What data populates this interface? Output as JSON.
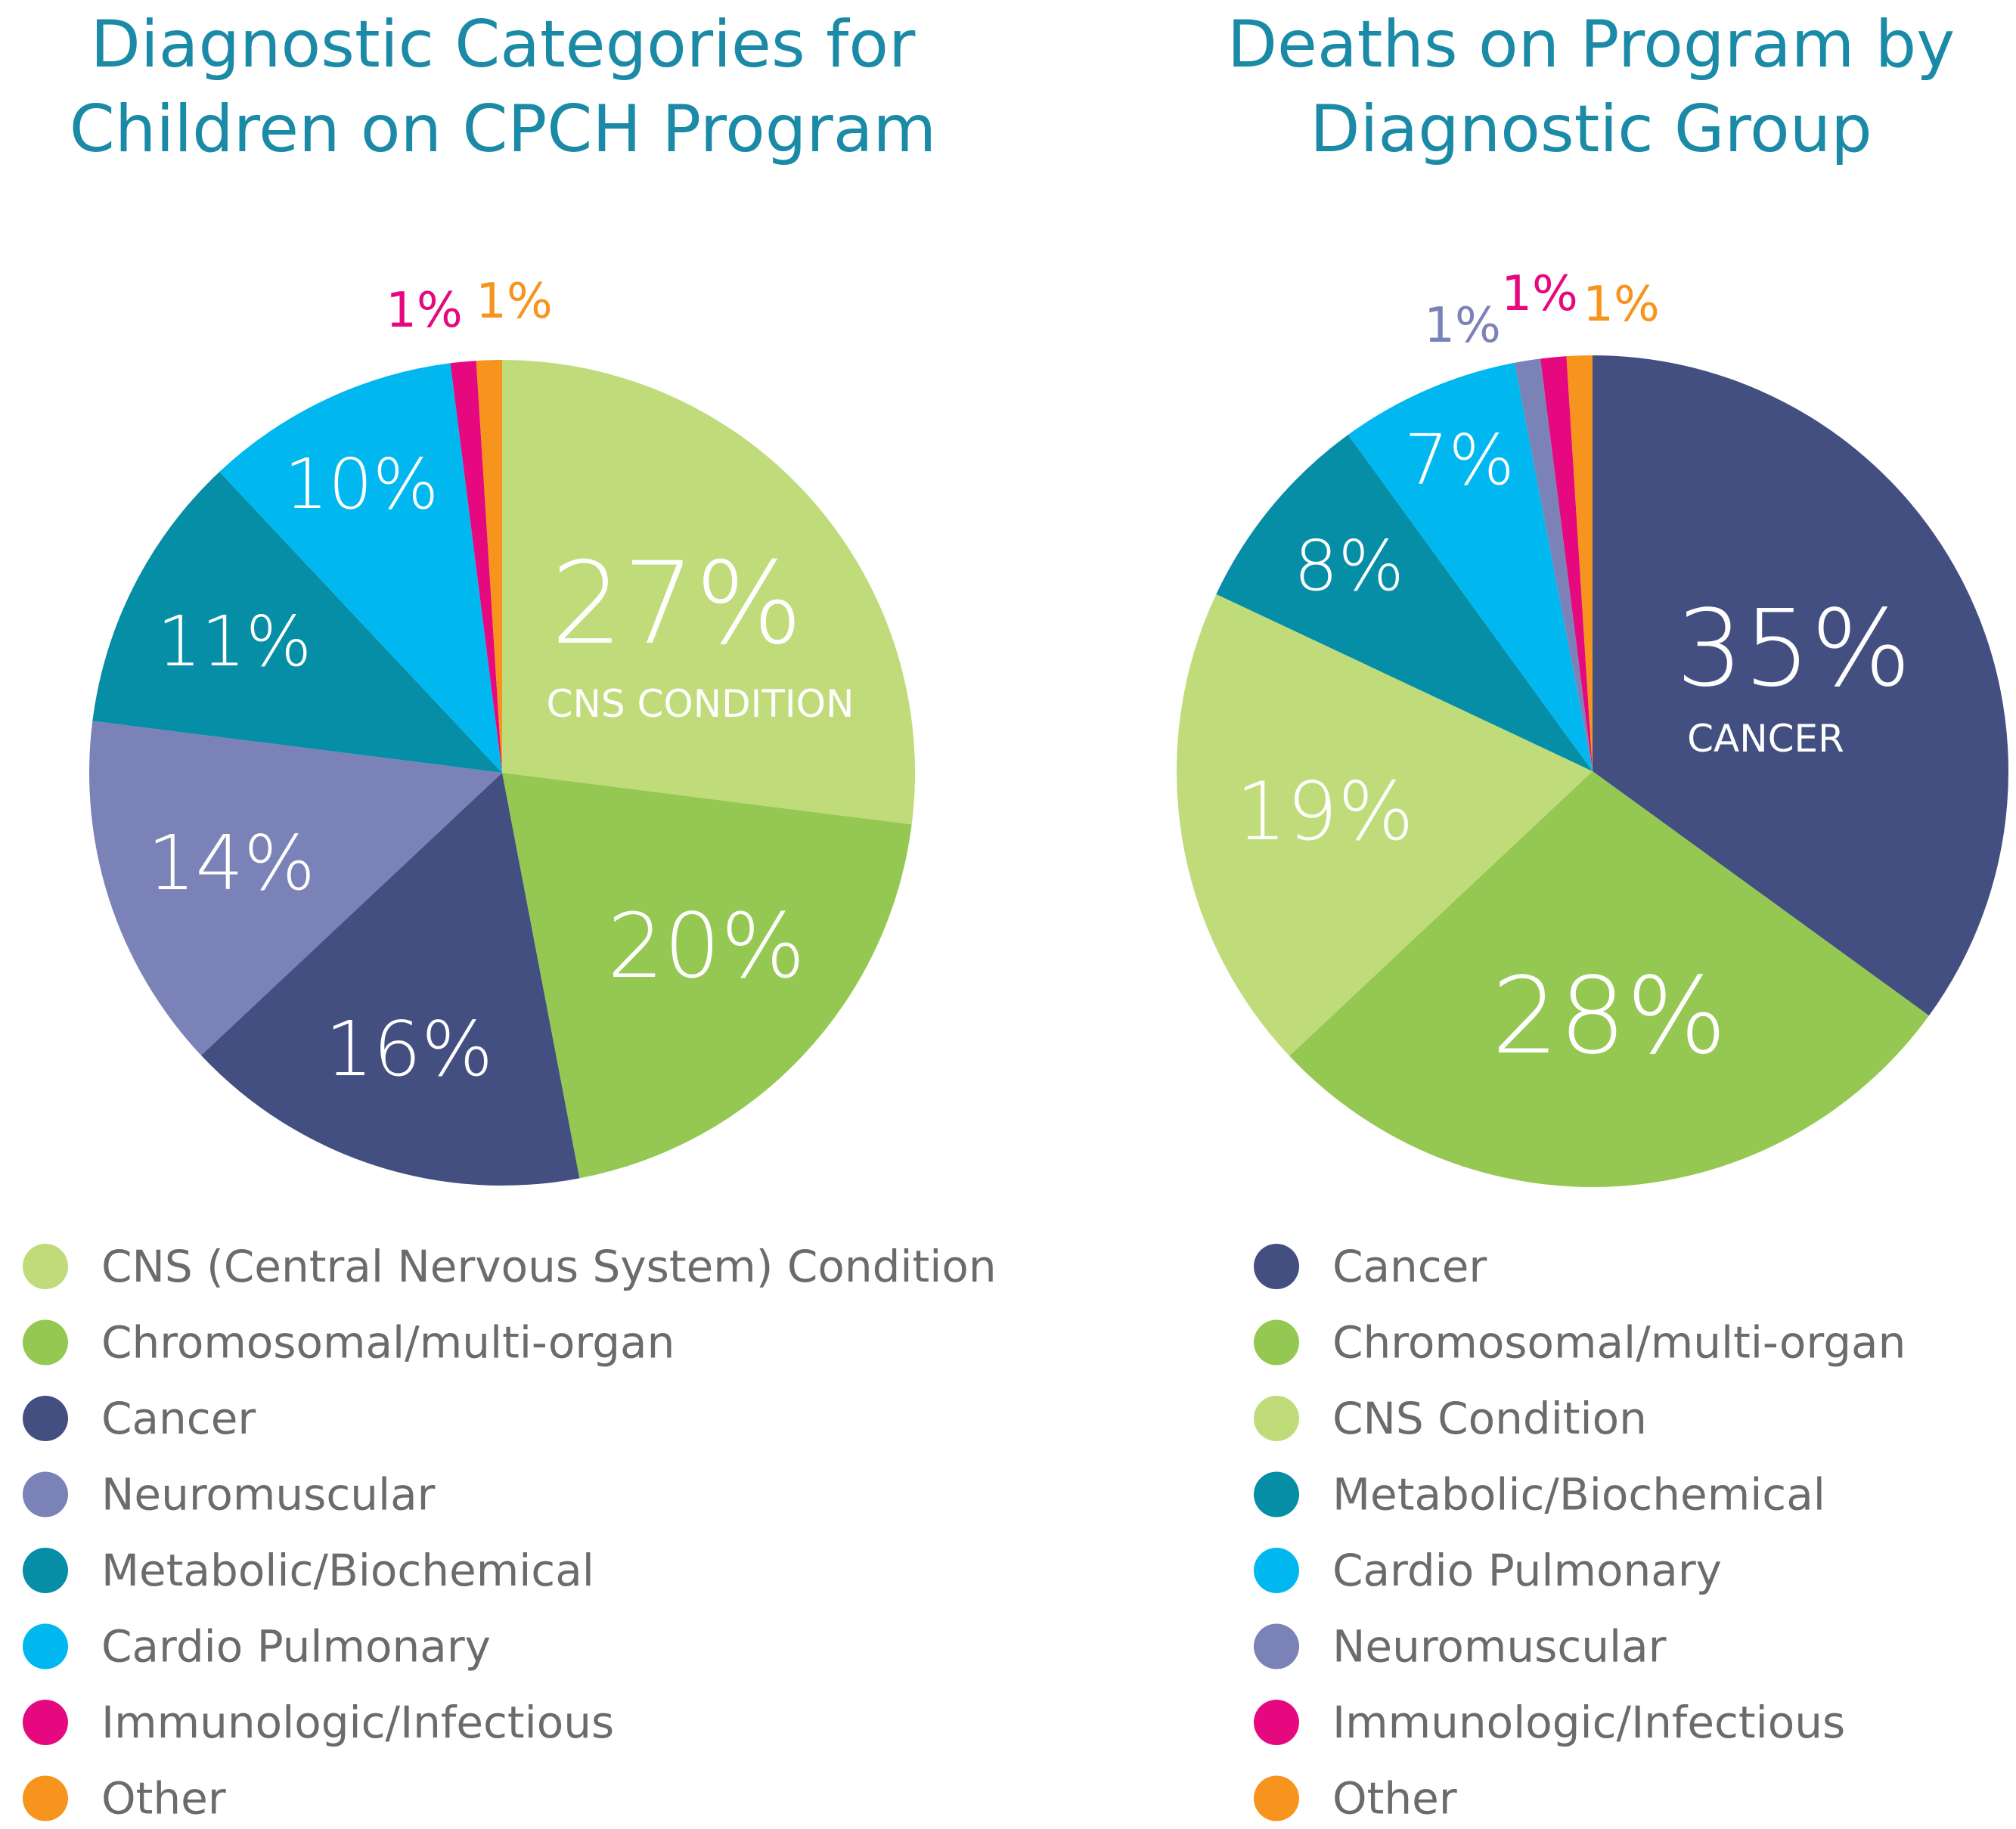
{
  "chart_data": [
    {
      "type": "pie",
      "title_lines": [
        "Diagnostic Categories for",
        "Children on CPCH Program"
      ],
      "slices": [
        {
          "label": "CNS (Central Nervous System) Condition",
          "value": 27,
          "value_text": "27%",
          "inner_label": "CNS CONDITION",
          "color": "#bfdb7a"
        },
        {
          "label": "Chromosomal/multi-organ",
          "value": 20,
          "value_text": "20%",
          "color": "#95c852"
        },
        {
          "label": "Cancer",
          "value": 16,
          "value_text": "16%",
          "color": "#434f80"
        },
        {
          "label": "Neuromuscular",
          "value": 14,
          "value_text": "14%",
          "color": "#7b82b8"
        },
        {
          "label": "Metabolic/Biochemical",
          "value": 11,
          "value_text": "11%",
          "color": "#058ea6"
        },
        {
          "label": "Cardio Pulmonary",
          "value": 10,
          "value_text": "10%",
          "color": "#00b8ef"
        },
        {
          "label": "Immunologic/Infectious",
          "value": 1,
          "value_text": "1%",
          "color": "#e5087f"
        },
        {
          "label": "Other",
          "value": 1,
          "value_text": "1%",
          "color": "#f7941d"
        }
      ]
    },
    {
      "type": "pie",
      "title_lines": [
        "Deaths on Program by",
        "Diagnostic Group"
      ],
      "slices": [
        {
          "label": "Cancer",
          "value": 35,
          "value_text": "35%",
          "inner_label": "CANCER",
          "color": "#434f80"
        },
        {
          "label": "Chromosomal/multi-organ",
          "value": 28,
          "value_text": "28%",
          "color": "#95c852"
        },
        {
          "label": "CNS Condition",
          "value": 19,
          "value_text": "19%",
          "color": "#bfdb7a"
        },
        {
          "label": "Metabolic/Biochemical",
          "value": 8,
          "value_text": "8%",
          "color": "#058ea6"
        },
        {
          "label": "Cardio Pulmonary",
          "value": 7,
          "value_text": "7%",
          "color": "#00b8ef"
        },
        {
          "label": "Neuromuscular",
          "value": 1,
          "value_text": "1%",
          "color": "#7b82b8"
        },
        {
          "label": "Immunologic/Infectious",
          "value": 1,
          "value_text": "1%",
          "color": "#e5087f"
        },
        {
          "label": "Other",
          "value": 1,
          "value_text": "1%",
          "color": "#f7941d"
        }
      ]
    }
  ]
}
